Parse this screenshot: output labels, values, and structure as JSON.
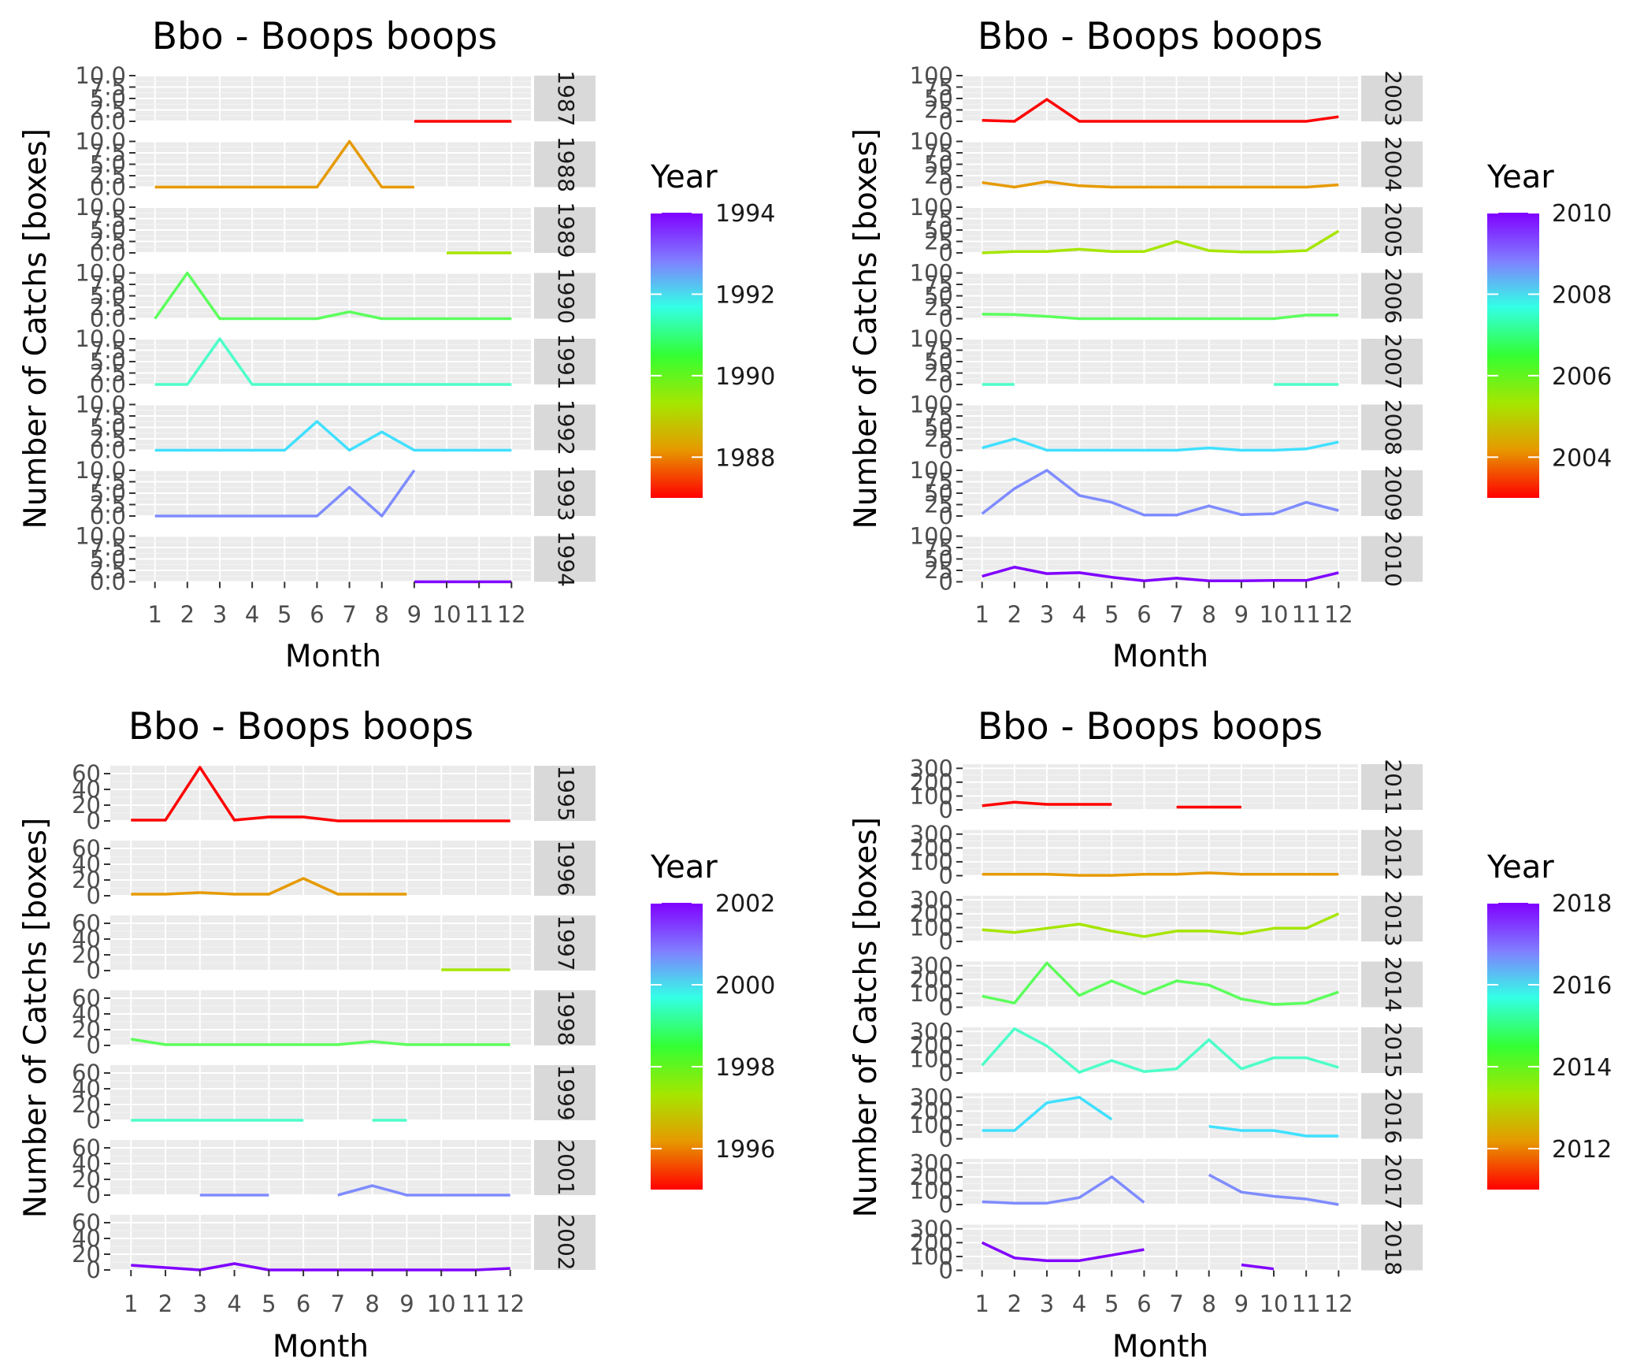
{
  "chart_data": [
    {
      "type": "line",
      "title": "Bbo - Boops boops",
      "xlabel": "Month",
      "ylabel": "Number of Catchs [boxes]",
      "legend_title": "Year",
      "legend_ticks": [
        1988,
        1990,
        1992,
        1994
      ],
      "legend_range": [
        1987,
        1994
      ],
      "legend_placement": "right",
      "x": [
        1,
        2,
        3,
        4,
        5,
        6,
        7,
        8,
        9,
        10,
        11,
        12
      ],
      "ylim": [
        0,
        10
      ],
      "yticks": [
        "0.0",
        "2.5",
        "5.0",
        "7.5",
        "10.0"
      ],
      "grid": true,
      "facets": [
        {
          "year": 1987,
          "strip": "1987",
          "color": "#ff0000",
          "values": [
            null,
            null,
            null,
            null,
            null,
            null,
            null,
            null,
            0,
            0,
            0,
            0
          ]
        },
        {
          "year": 1988,
          "strip": "1988",
          "color": "#e69a00",
          "values": [
            0,
            0,
            0,
            0,
            0,
            0,
            10,
            0,
            0,
            null,
            null,
            null
          ]
        },
        {
          "year": 1989,
          "strip": "1989",
          "color": "#a6e600",
          "values": [
            null,
            null,
            null,
            null,
            null,
            null,
            null,
            null,
            null,
            0,
            0,
            0
          ]
        },
        {
          "year": 1990,
          "strip": "1990",
          "color": "#5cff5c",
          "values": [
            0,
            10,
            0,
            0,
            0,
            0,
            1.5,
            0,
            0,
            0,
            0,
            0
          ]
        },
        {
          "year": 1991,
          "strip": "1991",
          "color": "#4dffc9",
          "values": [
            0,
            0,
            10,
            0,
            0,
            0,
            0,
            0,
            0,
            0,
            0,
            0
          ]
        },
        {
          "year": 1992,
          "strip": "1992",
          "color": "#40e0ff",
          "values": [
            0,
            0,
            0,
            0,
            0,
            6.3,
            0,
            4,
            0,
            0,
            0,
            0
          ]
        },
        {
          "year": 1993,
          "strip": "1993",
          "color": "#7f8cff",
          "values": [
            0,
            0,
            0,
            0,
            0,
            0,
            6.3,
            0,
            10,
            null,
            null,
            null
          ]
        },
        {
          "year": 1994,
          "strip": "1994",
          "color": "#8000ff",
          "values": [
            null,
            null,
            null,
            null,
            null,
            null,
            null,
            null,
            0,
            0,
            0,
            0
          ]
        }
      ]
    },
    {
      "type": "line",
      "title": "Bbo - Boops boops",
      "xlabel": "Month",
      "ylabel": "Number of Catchs [boxes]",
      "legend_title": "Year",
      "legend_ticks": [
        2004,
        2006,
        2008,
        2010
      ],
      "legend_range": [
        2003,
        2010
      ],
      "legend_placement": "right",
      "x": [
        1,
        2,
        3,
        4,
        5,
        6,
        7,
        8,
        9,
        10,
        11,
        12
      ],
      "ylim": [
        0,
        100
      ],
      "yticks": [
        "0",
        "25",
        "50",
        "75",
        "100"
      ],
      "grid": true,
      "facets": [
        {
          "year": 2003,
          "strip": "2003",
          "color": "#ff0000",
          "values": [
            2,
            0,
            48,
            0,
            0,
            0,
            0,
            0,
            0,
            0,
            0,
            10
          ]
        },
        {
          "year": 2004,
          "strip": "2004",
          "color": "#e69a00",
          "values": [
            10,
            0,
            12,
            3,
            0,
            0,
            0,
            0,
            0,
            0,
            0,
            5
          ]
        },
        {
          "year": 2005,
          "strip": "2005",
          "color": "#a6e600",
          "values": [
            0,
            3,
            3,
            8,
            3,
            3,
            25,
            5,
            2,
            2,
            5,
            48
          ]
        },
        {
          "year": 2006,
          "strip": "2006",
          "color": "#5cff5c",
          "values": [
            10,
            9,
            5,
            0,
            0,
            0,
            0,
            0,
            0,
            0,
            8,
            8
          ]
        },
        {
          "year": 2007,
          "strip": "2007",
          "color": "#4dffc9",
          "values": [
            0,
            0,
            null,
            null,
            null,
            null,
            null,
            null,
            null,
            0,
            0,
            0
          ]
        },
        {
          "year": 2008,
          "strip": "2008",
          "color": "#40e0ff",
          "values": [
            5,
            25,
            0,
            0,
            0,
            0,
            0,
            5,
            0,
            0,
            3,
            18
          ]
        },
        {
          "year": 2009,
          "strip": "2009",
          "color": "#7f8cff",
          "values": [
            5,
            60,
            100,
            45,
            30,
            2,
            2,
            22,
            3,
            5,
            30,
            12
          ]
        },
        {
          "year": 2010,
          "strip": "2010",
          "color": "#8000ff",
          "values": [
            12,
            32,
            18,
            20,
            10,
            2,
            8,
            2,
            2,
            3,
            3,
            20
          ]
        }
      ]
    },
    {
      "type": "line",
      "title": "Bbo - Boops boops",
      "xlabel": "Month",
      "ylabel": "Number of Catchs [boxes]",
      "legend_title": "Year",
      "legend_ticks": [
        1996,
        1998,
        2000,
        2002
      ],
      "legend_range": [
        1995,
        2002
      ],
      "legend_placement": "right",
      "x": [
        1,
        2,
        3,
        4,
        5,
        6,
        7,
        8,
        9,
        10,
        11,
        12
      ],
      "ylim": [
        0,
        70
      ],
      "yticks": [
        "0",
        "20",
        "40",
        "60"
      ],
      "grid": true,
      "facets": [
        {
          "year": 1995,
          "strip": "1995",
          "color": "#ff0000",
          "values": [
            1,
            1,
            68,
            1,
            5,
            5,
            0,
            0,
            0,
            0,
            0,
            0
          ]
        },
        {
          "year": 1996,
          "strip": "1996",
          "color": "#e69a00",
          "values": [
            2,
            2,
            4,
            2,
            2,
            22,
            2,
            2,
            2,
            null,
            null,
            null
          ]
        },
        {
          "year": 1997,
          "strip": "1997",
          "color": "#a6e600",
          "values": [
            null,
            null,
            null,
            null,
            null,
            null,
            null,
            null,
            null,
            1,
            1,
            1
          ]
        },
        {
          "year": 1998,
          "strip": "1998",
          "color": "#5cff5c",
          "values": [
            8,
            1,
            1,
            1,
            1,
            1,
            1,
            5,
            1,
            1,
            1,
            1
          ]
        },
        {
          "year": 1999,
          "strip": "1999",
          "color": "#4dffc9",
          "values": [
            0,
            0,
            0,
            0,
            0,
            0,
            null,
            0,
            0,
            null,
            null,
            null
          ]
        },
        {
          "year": 2001,
          "strip": "2001",
          "color": "#7f8cff",
          "values": [
            null,
            null,
            0,
            0,
            0,
            null,
            0,
            12,
            0,
            0,
            0,
            0
          ]
        },
        {
          "year": 2002,
          "strip": "2002",
          "color": "#8000ff",
          "values": [
            6,
            3,
            0,
            8,
            0,
            0,
            0,
            0,
            0,
            0,
            0,
            2
          ]
        }
      ]
    },
    {
      "type": "line",
      "title": "Bbo - Boops boops",
      "xlabel": "Month",
      "ylabel": "Number of Catchs [boxes]",
      "legend_title": "Year",
      "legend_ticks": [
        2012,
        2014,
        2016,
        2018
      ],
      "legend_range": [
        2011,
        2018
      ],
      "legend_placement": "right",
      "x": [
        1,
        2,
        3,
        4,
        5,
        6,
        7,
        8,
        9,
        10,
        11,
        12
      ],
      "ylim": [
        0,
        330
      ],
      "yticks": [
        "0",
        "100",
        "200",
        "300"
      ],
      "grid": true,
      "facets": [
        {
          "year": 2011,
          "strip": "2011",
          "color": "#ff0000",
          "values": [
            30,
            55,
            40,
            40,
            40,
            null,
            20,
            20,
            20,
            null,
            null,
            null
          ]
        },
        {
          "year": 2012,
          "strip": "2012",
          "color": "#e69a00",
          "values": [
            10,
            10,
            10,
            2,
            2,
            10,
            10,
            20,
            10,
            10,
            10,
            10
          ]
        },
        {
          "year": 2013,
          "strip": "2013",
          "color": "#a6e600",
          "values": [
            85,
            65,
            95,
            125,
            75,
            35,
            75,
            75,
            55,
            95,
            95,
            200
          ]
        },
        {
          "year": 2014,
          "strip": "2014",
          "color": "#5cff5c",
          "values": [
            80,
            30,
            320,
            85,
            190,
            95,
            190,
            160,
            60,
            20,
            30,
            110
          ]
        },
        {
          "year": 2015,
          "strip": "2015",
          "color": "#4dffc9",
          "values": [
            55,
            320,
            195,
            5,
            90,
            10,
            30,
            240,
            30,
            110,
            110,
            40
          ]
        },
        {
          "year": 2016,
          "strip": "2016",
          "color": "#40e0ff",
          "values": [
            60,
            60,
            260,
            300,
            140,
            null,
            null,
            90,
            60,
            60,
            20,
            20
          ]
        },
        {
          "year": 2017,
          "strip": "2017",
          "color": "#7f8cff",
          "values": [
            20,
            10,
            10,
            50,
            200,
            15,
            null,
            215,
            90,
            60,
            40,
            0
          ]
        },
        {
          "year": 2018,
          "strip": "2018",
          "color": "#8000ff",
          "values": [
            200,
            90,
            70,
            70,
            110,
            150,
            null,
            null,
            40,
            10,
            null,
            null
          ]
        }
      ]
    }
  ]
}
